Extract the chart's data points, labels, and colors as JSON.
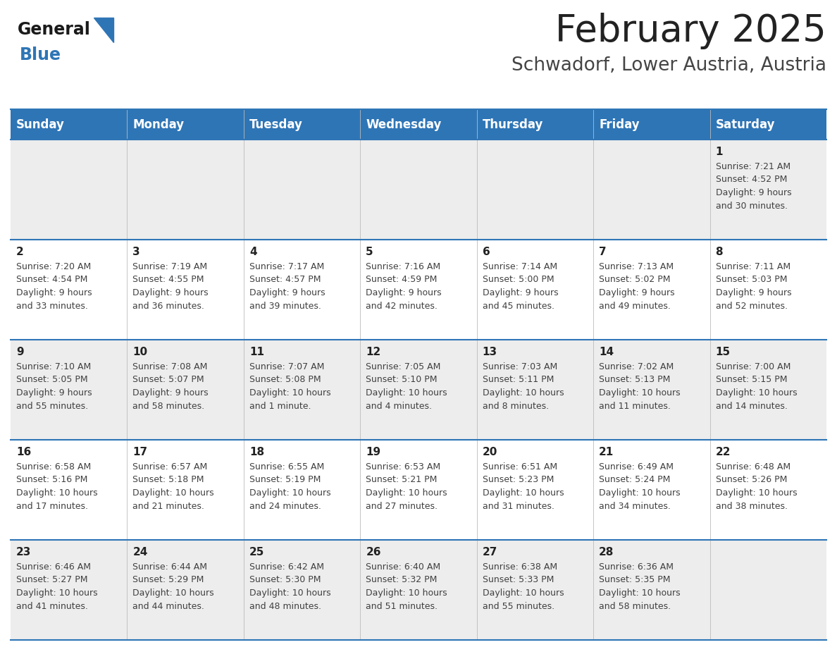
{
  "title": "February 2025",
  "subtitle": "Schwadorf, Lower Austria, Austria",
  "header_bg": "#2E75B6",
  "header_text_color": "#FFFFFF",
  "day_headers": [
    "Sunday",
    "Monday",
    "Tuesday",
    "Wednesday",
    "Thursday",
    "Friday",
    "Saturday"
  ],
  "row_bg_even": "#EDEDED",
  "row_bg_odd": "#FFFFFF",
  "separator_color": "#2E75B6",
  "text_color": "#404040",
  "date_color": "#222222",
  "title_color": "#222222",
  "subtitle_color": "#444444",
  "logo_general_color": "#1a1a1a",
  "logo_blue_color": "#2E75B6",
  "calendar_data": [
    [
      {
        "day": null,
        "info": ""
      },
      {
        "day": null,
        "info": ""
      },
      {
        "day": null,
        "info": ""
      },
      {
        "day": null,
        "info": ""
      },
      {
        "day": null,
        "info": ""
      },
      {
        "day": null,
        "info": ""
      },
      {
        "day": 1,
        "info": "Sunrise: 7:21 AM\nSunset: 4:52 PM\nDaylight: 9 hours\nand 30 minutes."
      }
    ],
    [
      {
        "day": 2,
        "info": "Sunrise: 7:20 AM\nSunset: 4:54 PM\nDaylight: 9 hours\nand 33 minutes."
      },
      {
        "day": 3,
        "info": "Sunrise: 7:19 AM\nSunset: 4:55 PM\nDaylight: 9 hours\nand 36 minutes."
      },
      {
        "day": 4,
        "info": "Sunrise: 7:17 AM\nSunset: 4:57 PM\nDaylight: 9 hours\nand 39 minutes."
      },
      {
        "day": 5,
        "info": "Sunrise: 7:16 AM\nSunset: 4:59 PM\nDaylight: 9 hours\nand 42 minutes."
      },
      {
        "day": 6,
        "info": "Sunrise: 7:14 AM\nSunset: 5:00 PM\nDaylight: 9 hours\nand 45 minutes."
      },
      {
        "day": 7,
        "info": "Sunrise: 7:13 AM\nSunset: 5:02 PM\nDaylight: 9 hours\nand 49 minutes."
      },
      {
        "day": 8,
        "info": "Sunrise: 7:11 AM\nSunset: 5:03 PM\nDaylight: 9 hours\nand 52 minutes."
      }
    ],
    [
      {
        "day": 9,
        "info": "Sunrise: 7:10 AM\nSunset: 5:05 PM\nDaylight: 9 hours\nand 55 minutes."
      },
      {
        "day": 10,
        "info": "Sunrise: 7:08 AM\nSunset: 5:07 PM\nDaylight: 9 hours\nand 58 minutes."
      },
      {
        "day": 11,
        "info": "Sunrise: 7:07 AM\nSunset: 5:08 PM\nDaylight: 10 hours\nand 1 minute."
      },
      {
        "day": 12,
        "info": "Sunrise: 7:05 AM\nSunset: 5:10 PM\nDaylight: 10 hours\nand 4 minutes."
      },
      {
        "day": 13,
        "info": "Sunrise: 7:03 AM\nSunset: 5:11 PM\nDaylight: 10 hours\nand 8 minutes."
      },
      {
        "day": 14,
        "info": "Sunrise: 7:02 AM\nSunset: 5:13 PM\nDaylight: 10 hours\nand 11 minutes."
      },
      {
        "day": 15,
        "info": "Sunrise: 7:00 AM\nSunset: 5:15 PM\nDaylight: 10 hours\nand 14 minutes."
      }
    ],
    [
      {
        "day": 16,
        "info": "Sunrise: 6:58 AM\nSunset: 5:16 PM\nDaylight: 10 hours\nand 17 minutes."
      },
      {
        "day": 17,
        "info": "Sunrise: 6:57 AM\nSunset: 5:18 PM\nDaylight: 10 hours\nand 21 minutes."
      },
      {
        "day": 18,
        "info": "Sunrise: 6:55 AM\nSunset: 5:19 PM\nDaylight: 10 hours\nand 24 minutes."
      },
      {
        "day": 19,
        "info": "Sunrise: 6:53 AM\nSunset: 5:21 PM\nDaylight: 10 hours\nand 27 minutes."
      },
      {
        "day": 20,
        "info": "Sunrise: 6:51 AM\nSunset: 5:23 PM\nDaylight: 10 hours\nand 31 minutes."
      },
      {
        "day": 21,
        "info": "Sunrise: 6:49 AM\nSunset: 5:24 PM\nDaylight: 10 hours\nand 34 minutes."
      },
      {
        "day": 22,
        "info": "Sunrise: 6:48 AM\nSunset: 5:26 PM\nDaylight: 10 hours\nand 38 minutes."
      }
    ],
    [
      {
        "day": 23,
        "info": "Sunrise: 6:46 AM\nSunset: 5:27 PM\nDaylight: 10 hours\nand 41 minutes."
      },
      {
        "day": 24,
        "info": "Sunrise: 6:44 AM\nSunset: 5:29 PM\nDaylight: 10 hours\nand 44 minutes."
      },
      {
        "day": 25,
        "info": "Sunrise: 6:42 AM\nSunset: 5:30 PM\nDaylight: 10 hours\nand 48 minutes."
      },
      {
        "day": 26,
        "info": "Sunrise: 6:40 AM\nSunset: 5:32 PM\nDaylight: 10 hours\nand 51 minutes."
      },
      {
        "day": 27,
        "info": "Sunrise: 6:38 AM\nSunset: 5:33 PM\nDaylight: 10 hours\nand 55 minutes."
      },
      {
        "day": 28,
        "info": "Sunrise: 6:36 AM\nSunset: 5:35 PM\nDaylight: 10 hours\nand 58 minutes."
      },
      {
        "day": null,
        "info": ""
      }
    ]
  ],
  "figsize": [
    11.88,
    9.18
  ],
  "dpi": 100
}
